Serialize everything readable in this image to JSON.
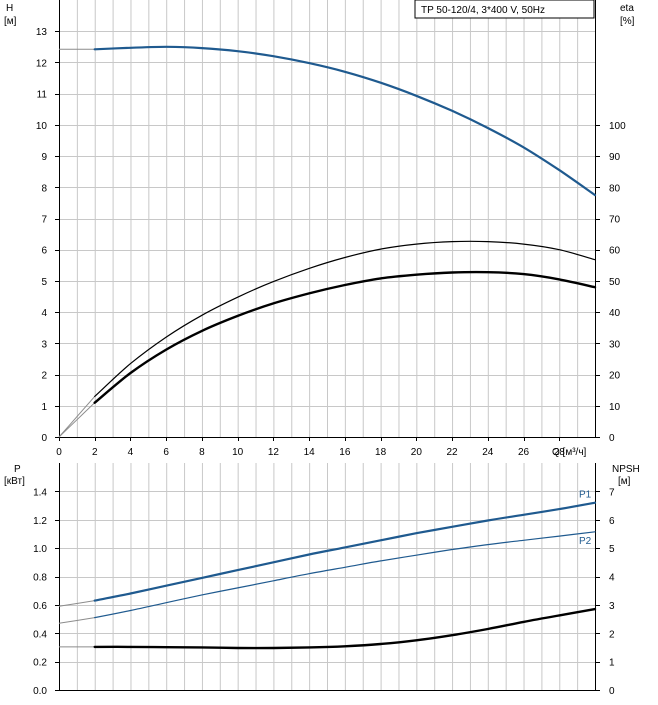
{
  "legend": {
    "label": "TP 50-120/4, 3*400 V, 50Hz"
  },
  "axes": {
    "h_label": "H",
    "h_unit": "[м]",
    "eta_label": "eta",
    "eta_unit": "[%]",
    "p_label": "P",
    "p_unit": "[кВт]",
    "npsh_label": "NPSH",
    "npsh_unit": "[м]",
    "q_label": "Q [м³/ч]"
  },
  "colors": {
    "blue": "#1f5a8f",
    "black": "#000000",
    "grid": "#c8c8c8"
  },
  "chart_data": [
    {
      "type": "line",
      "title": "",
      "xlabel": "Q [м³/ч]",
      "ylabel": "H [м]",
      "y2label": "eta [%]",
      "xlim": [
        0,
        30
      ],
      "ylim": [
        0,
        14
      ],
      "y2lim": [
        0,
        140
      ],
      "x_ticks": [
        0,
        2,
        4,
        6,
        8,
        10,
        12,
        14,
        16,
        18,
        20,
        22,
        24,
        26,
        28
      ],
      "y_ticks": [
        0,
        1,
        2,
        3,
        4,
        5,
        6,
        7,
        8,
        9,
        10,
        11,
        12,
        13
      ],
      "y2_ticks": [
        0,
        10,
        20,
        30,
        40,
        50,
        60,
        70,
        80,
        90,
        100
      ],
      "grid": true,
      "legend": "top-right",
      "series": [
        {
          "key": "H",
          "axis": "left",
          "color": "#1f5a8f",
          "width": 2.2,
          "x": [
            2,
            4,
            6,
            8,
            10,
            12,
            14,
            16,
            18,
            20,
            22,
            24,
            26,
            28,
            30
          ],
          "y": [
            12.42,
            12.47,
            12.5,
            12.46,
            12.36,
            12.2,
            11.98,
            11.7,
            11.35,
            10.93,
            10.45,
            9.9,
            9.28,
            8.55,
            7.75
          ]
        },
        {
          "key": "eta-upper",
          "axis": "right",
          "color": "#000000",
          "width": 1.2,
          "x": [
            2,
            4,
            6,
            8,
            10,
            12,
            14,
            16,
            18,
            20,
            22,
            24,
            26,
            28,
            30
          ],
          "y": [
            13,
            23.5,
            32,
            39,
            44.8,
            49.8,
            54,
            57.5,
            60.2,
            61.8,
            62.6,
            62.6,
            61.8,
            60,
            56.8
          ]
        },
        {
          "key": "eta-lower",
          "axis": "right",
          "color": "#000000",
          "width": 2.4,
          "x": [
            2,
            4,
            6,
            8,
            10,
            12,
            14,
            16,
            18,
            20,
            22,
            24,
            26,
            28,
            30
          ],
          "y": [
            11,
            20.5,
            28,
            34,
            38.8,
            42.8,
            46,
            48.7,
            50.8,
            52,
            52.7,
            52.8,
            52.2,
            50.5,
            48
          ]
        }
      ],
      "start_segments": [
        {
          "key": "H-start",
          "x": [
            0,
            2
          ],
          "y": [
            12.42,
            12.42
          ]
        },
        {
          "key": "eta-upper-start",
          "x": [
            0,
            1,
            2
          ],
          "y": [
            0,
            6.5,
            13
          ]
        },
        {
          "key": "eta-lower-start",
          "x": [
            0,
            1,
            2
          ],
          "y": [
            0,
            5.5,
            11
          ]
        }
      ]
    },
    {
      "type": "line",
      "title": "",
      "xlabel": "Q [м³/ч]",
      "ylabel": "P [кВт]",
      "y2label": "NPSH [м]",
      "xlim": [
        0,
        30
      ],
      "ylim": [
        0,
        1.6
      ],
      "y2lim": [
        0,
        8
      ],
      "y_ticks": [
        0.0,
        0.2,
        0.4,
        0.6,
        0.8,
        1.0,
        1.2,
        1.4
      ],
      "y_tick_labels": [
        "0.0",
        "0.2",
        "0.4",
        "0.6",
        "0.8",
        "1.0",
        "1.2",
        "1.4"
      ],
      "y2_ticks": [
        0,
        1,
        2,
        3,
        4,
        5,
        6,
        7
      ],
      "grid": true,
      "series": [
        {
          "key": "P1",
          "name": "P1",
          "axis": "left",
          "color": "#1f5a8f",
          "width": 2.2,
          "x": [
            2,
            4,
            6,
            8,
            10,
            12,
            14,
            16,
            18,
            20,
            22,
            24,
            26,
            28,
            30
          ],
          "y": [
            0.63,
            0.68,
            0.735,
            0.79,
            0.845,
            0.9,
            0.955,
            1.005,
            1.055,
            1.105,
            1.15,
            1.195,
            1.235,
            1.275,
            1.32
          ]
        },
        {
          "key": "P2",
          "name": "P2",
          "axis": "left",
          "color": "#1f5a8f",
          "width": 1.2,
          "x": [
            2,
            4,
            6,
            8,
            10,
            12,
            14,
            16,
            18,
            20,
            22,
            24,
            26,
            28,
            30
          ],
          "y": [
            0.51,
            0.56,
            0.615,
            0.67,
            0.72,
            0.77,
            0.82,
            0.865,
            0.91,
            0.95,
            0.99,
            1.025,
            1.055,
            1.085,
            1.115
          ]
        },
        {
          "key": "NPSH",
          "axis": "right",
          "color": "#000000",
          "width": 2.4,
          "x": [
            2,
            4,
            6,
            8,
            10,
            12,
            14,
            16,
            18,
            20,
            22,
            24,
            26,
            28,
            30
          ],
          "y": [
            1.52,
            1.52,
            1.51,
            1.5,
            1.48,
            1.48,
            1.5,
            1.54,
            1.62,
            1.75,
            1.93,
            2.15,
            2.4,
            2.63,
            2.85
          ]
        }
      ],
      "start_segments": [
        {
          "key": "P1-start",
          "x": [
            0,
            2
          ],
          "y": [
            0.59,
            0.63
          ]
        },
        {
          "key": "P2-start",
          "x": [
            0,
            2
          ],
          "y": [
            0.47,
            0.51
          ]
        },
        {
          "key": "NPSH-start",
          "axis": "right",
          "x": [
            0,
            2
          ],
          "y": [
            1.52,
            1.52
          ]
        }
      ]
    }
  ]
}
